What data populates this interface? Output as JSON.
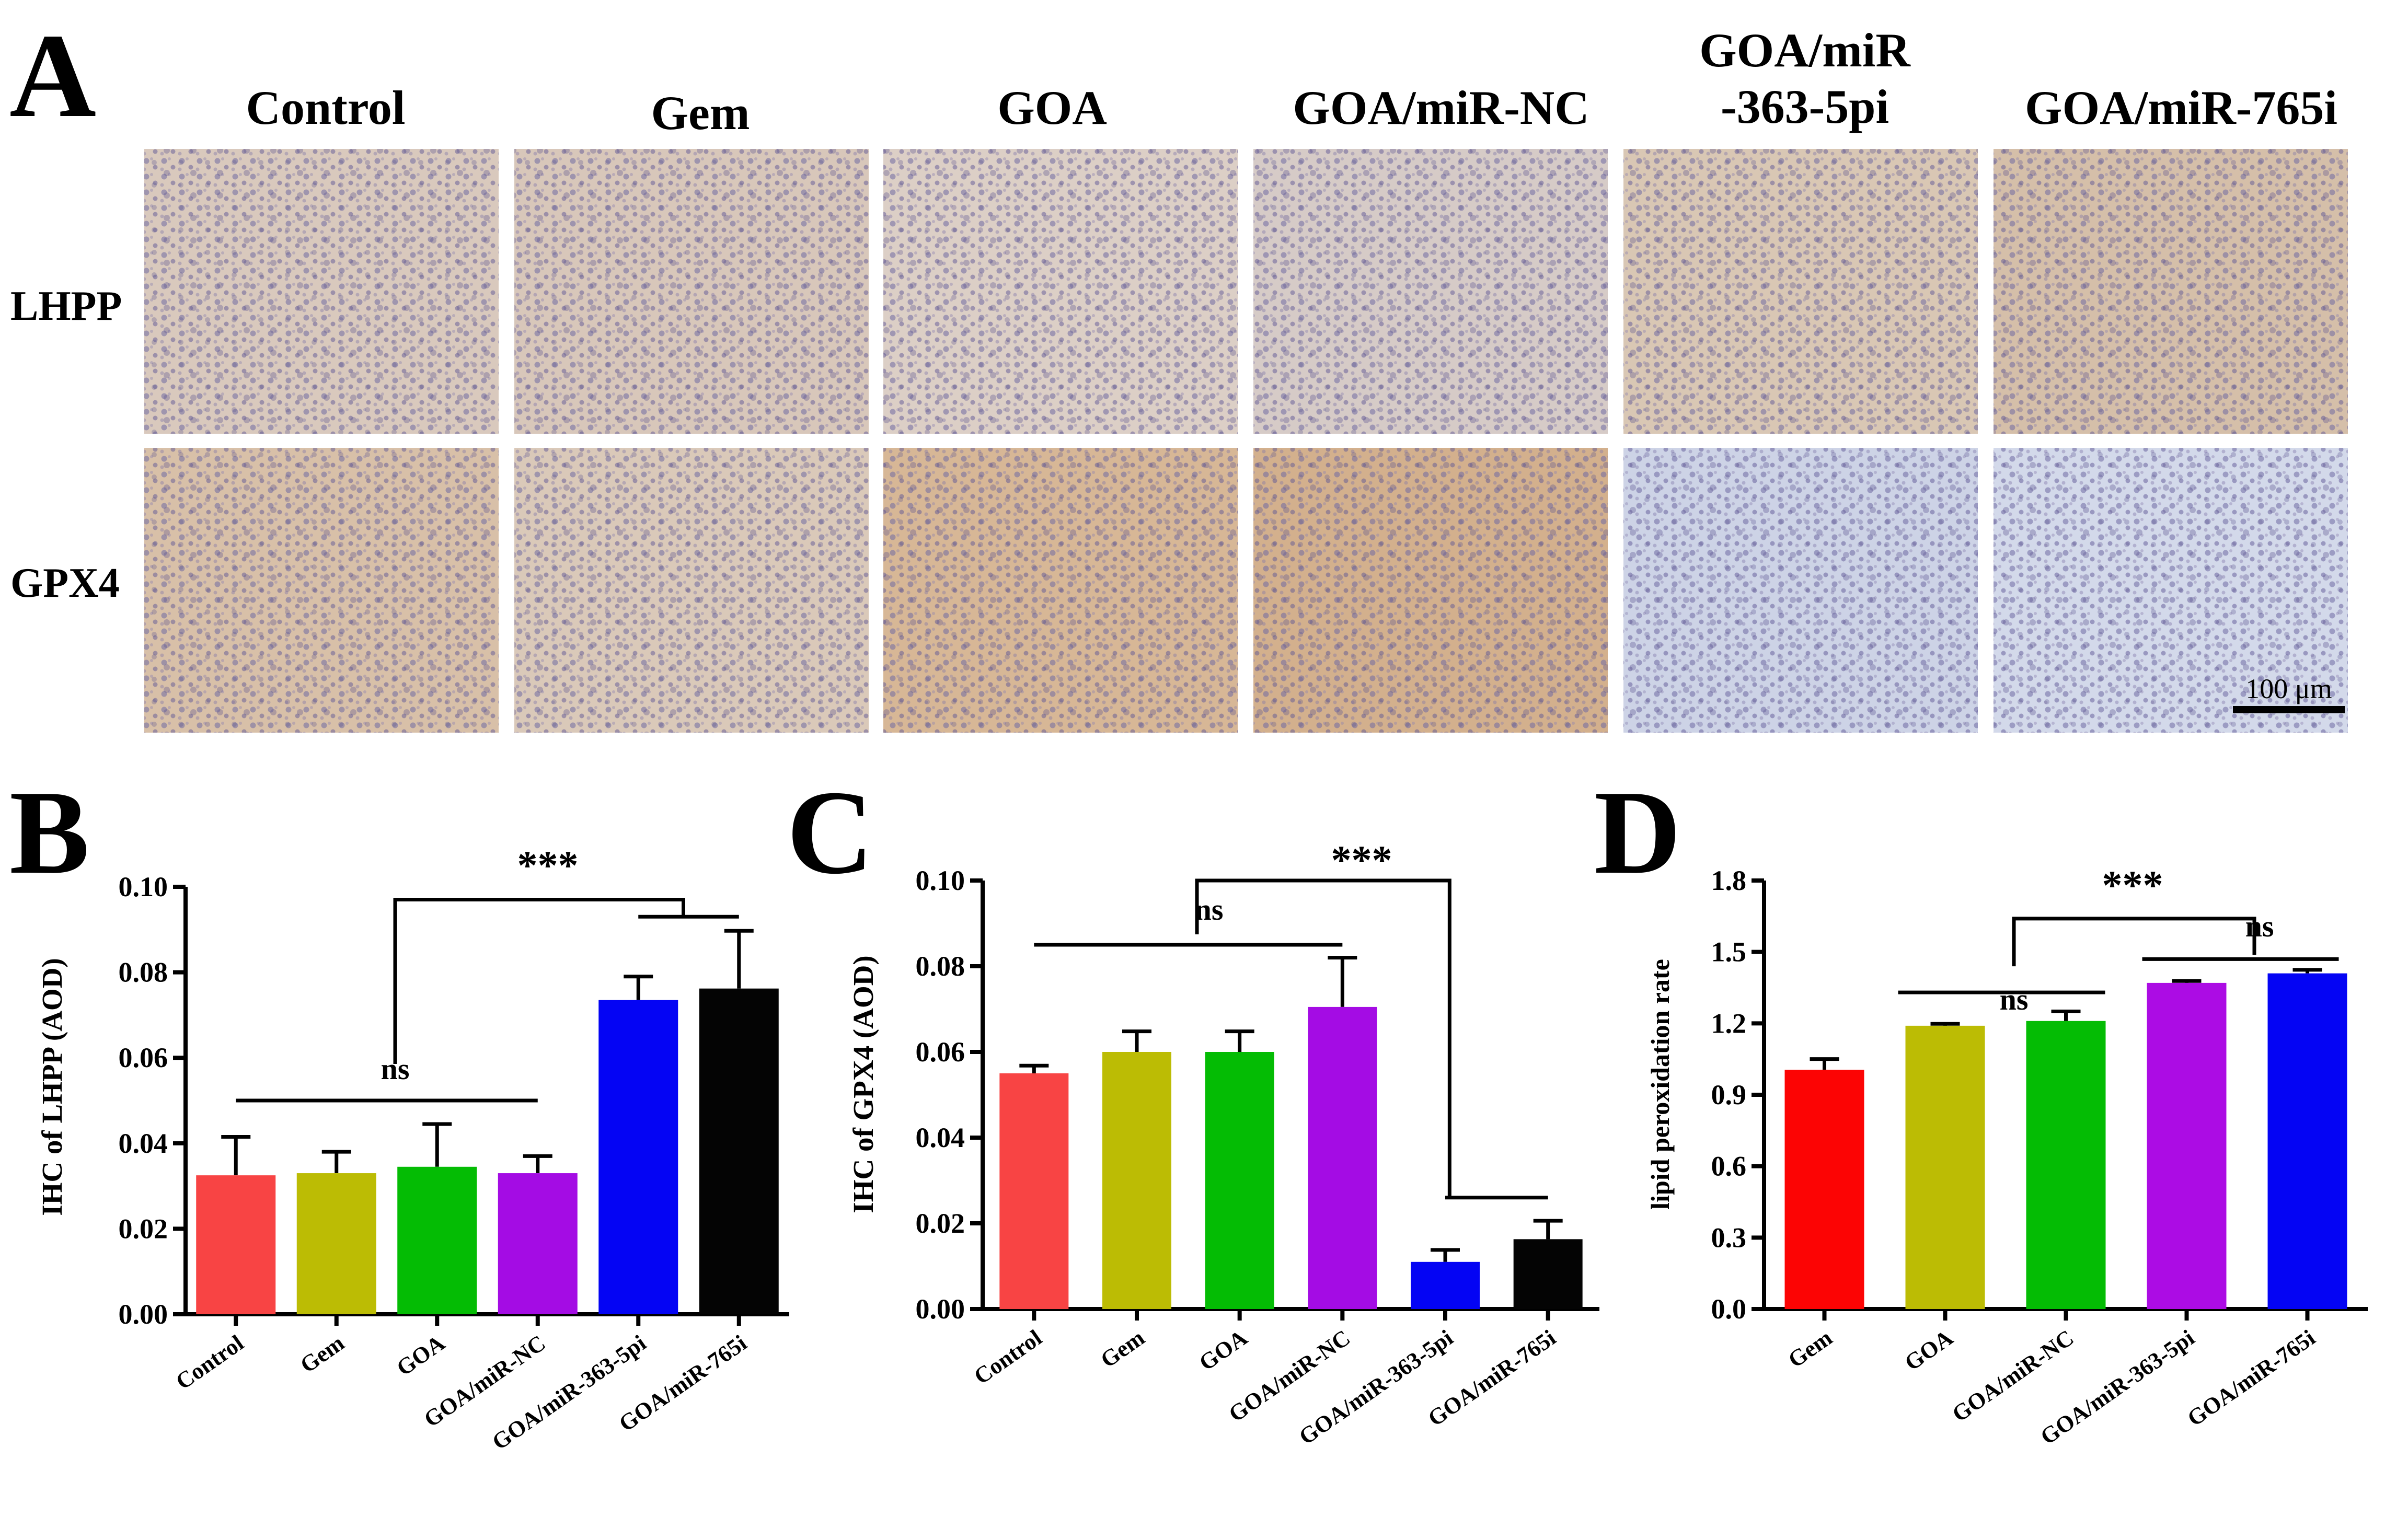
{
  "panel_labels": [
    "A",
    "B",
    "C",
    "D"
  ],
  "panel_a": {
    "columns": [
      "Control",
      "Gem",
      "GOA",
      "GOA/miR-NC",
      "GOA/miR\n-363-5pi",
      "GOA/miR-765i"
    ],
    "rows": [
      "LHPP",
      "GPX4"
    ],
    "scale_bar_label": "100 μm",
    "tint_colors": {
      "lhpp": [
        "#d9c9bd",
        "#d8c7ba",
        "#dccfc6",
        "#d6cbc7",
        "#d9c7b4",
        "#d5bfa9"
      ],
      "gpx4": [
        "#d8c0a8",
        "#dac9b9",
        "#d7b796",
        "#d3b08d",
        "#cdd3e6",
        "#d3d9ea"
      ]
    }
  },
  "chart_data": [
    {
      "type": "bar",
      "panel": "B",
      "categories": [
        "Control",
        "Gem",
        "GOA",
        "GOA/miR-NC",
        "GOA/miR-363-5pi",
        "GOA/miR-765i"
      ],
      "values": [
        0.0325,
        0.033,
        0.0345,
        0.033,
        0.0735,
        0.0762
      ],
      "errors": [
        0.009,
        0.005,
        0.01,
        0.004,
        0.0055,
        0.0135
      ],
      "colors": [
        "#f84444",
        "#bcbc04",
        "#04bc04",
        "#a40ce4",
        "#0404f4",
        "#040404"
      ],
      "ylabel": "IHC of LHPP (AOD)",
      "ylim": [
        0,
        0.1
      ],
      "yticks": [
        "0.00",
        "0.02",
        "0.04",
        "0.06",
        "0.08",
        "0.10"
      ],
      "annotations": [
        "ns",
        "***"
      ]
    },
    {
      "type": "bar",
      "panel": "C",
      "categories": [
        "Control",
        "Gem",
        "GOA",
        "GOA/miR-NC",
        "GOA/miR-363-5pi",
        "GOA/miR-765i"
      ],
      "values": [
        0.055,
        0.06,
        0.06,
        0.0705,
        0.011,
        0.0163
      ],
      "errors": [
        0.0018,
        0.0048,
        0.0048,
        0.0115,
        0.0028,
        0.0043
      ],
      "colors": [
        "#f84444",
        "#bcbc04",
        "#04bc04",
        "#a40ce4",
        "#0404f4",
        "#040404"
      ],
      "ylabel": "IHC of GPX4 (AOD)",
      "ylim": [
        0,
        0.1
      ],
      "yticks": [
        "0.00",
        "0.02",
        "0.04",
        "0.06",
        "0.08",
        "0.10"
      ],
      "annotations": [
        "ns",
        "***"
      ]
    },
    {
      "type": "bar",
      "panel": "D",
      "categories": [
        "Gem",
        "GOA",
        "GOA/miR-NC",
        "GOA/miR-363-5pi",
        "GOA/miR-765i"
      ],
      "values": [
        1.005,
        1.19,
        1.21,
        1.37,
        1.41
      ],
      "errors": [
        0.045,
        0.008,
        0.04,
        0.008,
        0.015
      ],
      "colors": [
        "#fc0404",
        "#bcbc04",
        "#04bc04",
        "#ac0ce4",
        "#0404f4"
      ],
      "ylabel": "lipid peroxidation rate",
      "ylim": [
        0,
        1.8
      ],
      "yticks": [
        "0.0",
        "0.3",
        "0.6",
        "0.9",
        "1.2",
        "1.5",
        "1.8"
      ],
      "annotations": [
        "ns",
        "ns",
        "***"
      ]
    }
  ]
}
